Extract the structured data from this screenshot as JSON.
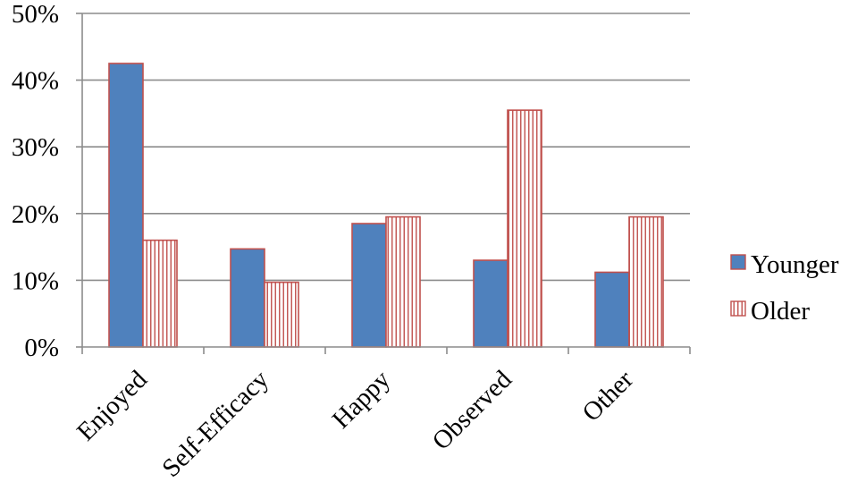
{
  "chart_data": {
    "type": "bar",
    "categories": [
      "Enjoyed",
      "Self-Efficacy",
      "Happy",
      "Observed",
      "Other"
    ],
    "series": [
      {
        "name": "Younger",
        "values": [
          42.5,
          14.7,
          18.5,
          13.0,
          11.2
        ]
      },
      {
        "name": "Older",
        "values": [
          16.0,
          9.7,
          19.5,
          35.5,
          19.5
        ]
      }
    ],
    "y_ticks": [
      "0%",
      "10%",
      "20%",
      "30%",
      "40%",
      "50%"
    ],
    "ylim": [
      0,
      50
    ],
    "grid": true,
    "legend": "right",
    "colors": {
      "younger_fill": "#4F81BD",
      "bar_outline": "#C0504D",
      "older_stripe": "#C0504D",
      "gridline": "#8C8C8C",
      "axis": "#8C8C8C"
    }
  }
}
